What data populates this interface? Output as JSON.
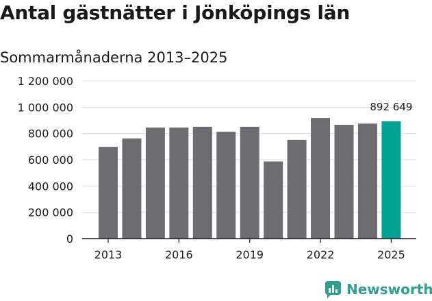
{
  "chart_data": {
    "type": "bar",
    "title": "Antal gästnätter i Jönköpings län",
    "subtitle": "Sommarmånaderna 2013–2025",
    "categories": [
      "2013",
      "2014",
      "2015",
      "2016",
      "2017",
      "2018",
      "2019",
      "2020",
      "2021",
      "2022",
      "2023",
      "2024",
      "2025"
    ],
    "values": [
      698000,
      762000,
      845000,
      845000,
      851000,
      813000,
      851000,
      587000,
      752000,
      918000,
      866000,
      875000,
      892649
    ],
    "x_tick_labels": [
      "2013",
      "2016",
      "2019",
      "2022",
      "2025"
    ],
    "y_tick_labels": [
      "0",
      "200 000",
      "400 000",
      "600 000",
      "800 000",
      "1 000 000",
      "1 200 000"
    ],
    "ylim": [
      0,
      1200000
    ],
    "grid": true,
    "highlight_index": 12,
    "highlight_label": "892 649",
    "colors": {
      "bar": "#6d6c71",
      "highlight": "#00a393",
      "grid": "#dddddd",
      "axis": "#1a1a1a"
    }
  },
  "brand": {
    "name": "Newsworthy"
  }
}
